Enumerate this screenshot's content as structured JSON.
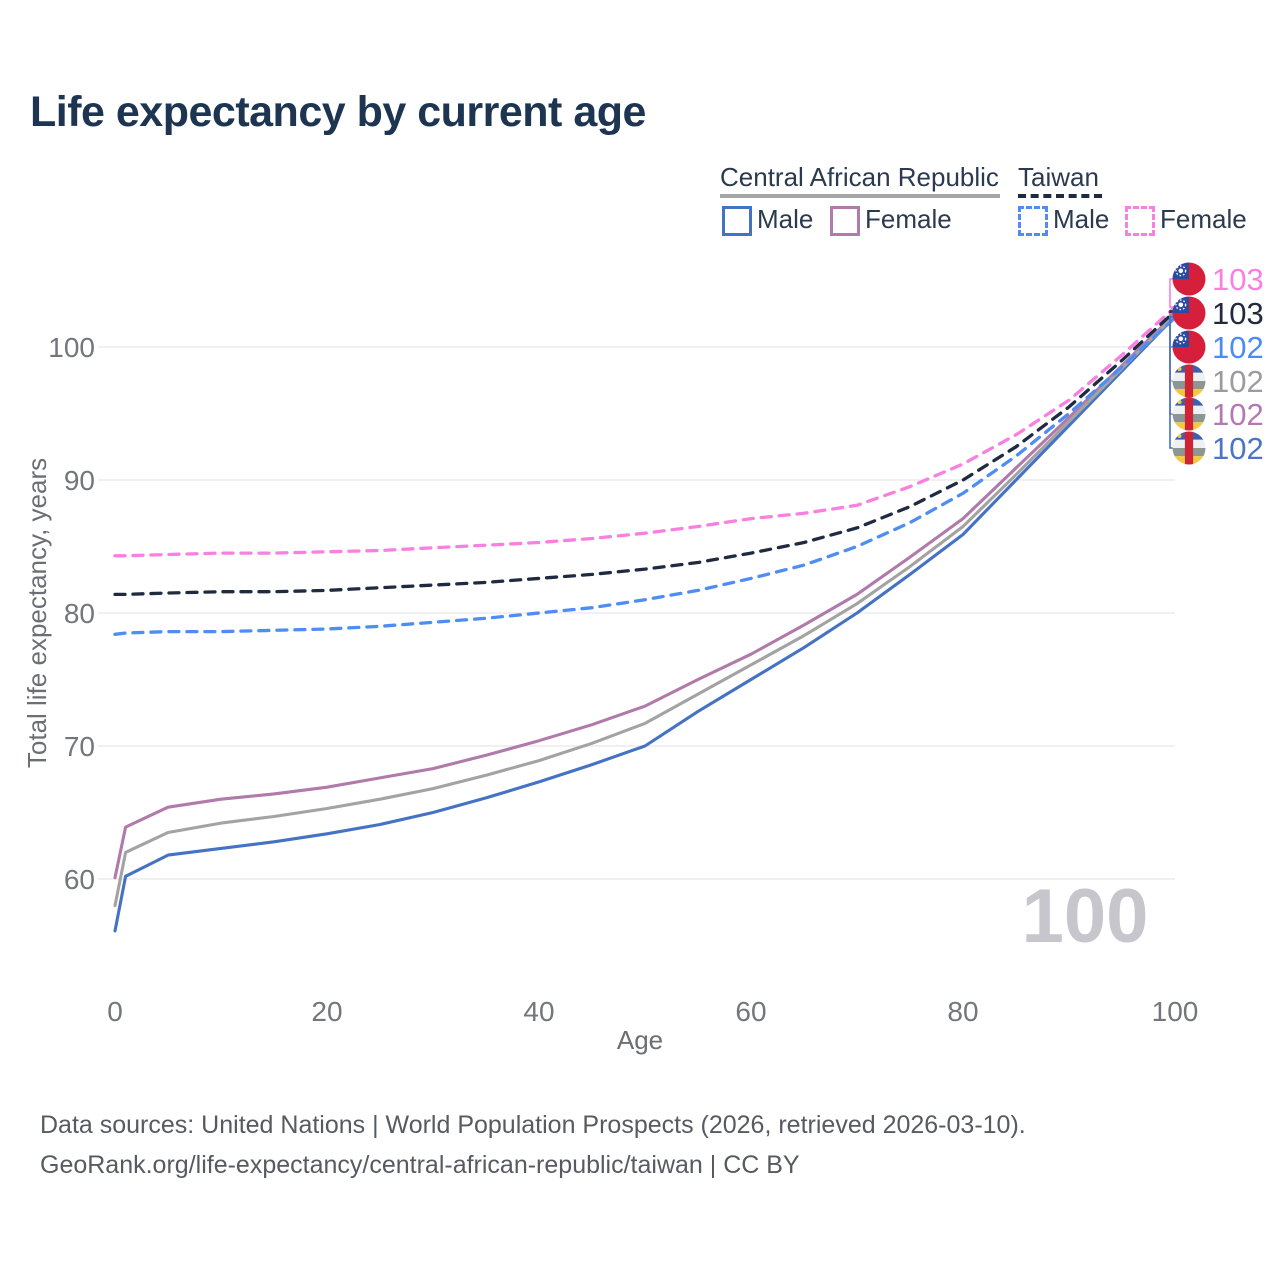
{
  "title": "Life expectancy by current age",
  "legend": {
    "groups": [
      {
        "label": "Central African Republic",
        "line_style": "solid",
        "line_color": "#a6a6a6",
        "items": [
          {
            "label": "Male",
            "color": "#4472c4",
            "dashed": false
          },
          {
            "label": "Female",
            "color": "#b07aab",
            "dashed": false
          }
        ]
      },
      {
        "label": "Taiwan",
        "line_style": "dashed",
        "line_color": "#1f2b40",
        "items": [
          {
            "label": "Male",
            "color": "#4f8df5",
            "dashed": true
          },
          {
            "label": "Female",
            "color": "#f97fe0",
            "dashed": true
          }
        ]
      }
    ]
  },
  "chart_data": {
    "type": "line",
    "title": "Life expectancy by current age",
    "xlabel": "Age",
    "ylabel": "Total life expectancy, years",
    "xlim": [
      0,
      100
    ],
    "ylim": [
      54,
      106
    ],
    "xticks": [
      0,
      20,
      40,
      60,
      80,
      100
    ],
    "yticks": [
      60,
      70,
      80,
      90,
      100
    ],
    "grid": "horizontal-only",
    "gridline_color": "#ececef",
    "watermark": "100",
    "series": [
      {
        "name": "Central African Republic Male",
        "country": "Central African Republic",
        "sex": "Male",
        "style": "solid",
        "color": "#4472c4",
        "points": [
          [
            0,
            56.1
          ],
          [
            1,
            60.2
          ],
          [
            5,
            61.8
          ],
          [
            10,
            62.3
          ],
          [
            15,
            62.8
          ],
          [
            20,
            63.4
          ],
          [
            25,
            64.1
          ],
          [
            30,
            65.0
          ],
          [
            35,
            66.1
          ],
          [
            40,
            67.3
          ],
          [
            45,
            68.6
          ],
          [
            50,
            70.0
          ],
          [
            55,
            72.6
          ],
          [
            60,
            75.0
          ],
          [
            65,
            77.4
          ],
          [
            70,
            80.0
          ],
          [
            75,
            82.9
          ],
          [
            80,
            85.9
          ],
          [
            85,
            90.0
          ],
          [
            90,
            94.1
          ],
          [
            95,
            98.2
          ],
          [
            100,
            102.3
          ]
        ]
      },
      {
        "name": "Central African Republic Female",
        "country": "Central African Republic",
        "sex": "Female",
        "style": "solid",
        "color": "#b07aab",
        "points": [
          [
            0,
            60.1
          ],
          [
            1,
            63.9
          ],
          [
            5,
            65.4
          ],
          [
            10,
            66.0
          ],
          [
            15,
            66.4
          ],
          [
            20,
            66.9
          ],
          [
            25,
            67.6
          ],
          [
            30,
            68.3
          ],
          [
            35,
            69.3
          ],
          [
            40,
            70.4
          ],
          [
            45,
            71.6
          ],
          [
            50,
            73.0
          ],
          [
            55,
            75.0
          ],
          [
            60,
            76.9
          ],
          [
            65,
            79.1
          ],
          [
            70,
            81.4
          ],
          [
            75,
            84.2
          ],
          [
            80,
            87.1
          ],
          [
            85,
            90.9
          ],
          [
            90,
            94.7
          ],
          [
            95,
            98.6
          ],
          [
            100,
            102.5
          ]
        ]
      },
      {
        "name": "Central African Republic Both sexes",
        "country": "Central African Republic",
        "sex": "Both",
        "style": "solid",
        "color": "#a3a3a3",
        "points": [
          [
            0,
            58.0
          ],
          [
            1,
            62.0
          ],
          [
            5,
            63.5
          ],
          [
            10,
            64.2
          ],
          [
            15,
            64.7
          ],
          [
            20,
            65.3
          ],
          [
            25,
            66.0
          ],
          [
            30,
            66.8
          ],
          [
            35,
            67.8
          ],
          [
            40,
            68.9
          ],
          [
            45,
            70.2
          ],
          [
            50,
            71.7
          ],
          [
            55,
            73.9
          ],
          [
            60,
            76.1
          ],
          [
            65,
            78.3
          ],
          [
            70,
            80.7
          ],
          [
            75,
            83.5
          ],
          [
            80,
            86.5
          ],
          [
            85,
            90.4
          ],
          [
            90,
            94.4
          ],
          [
            95,
            98.4
          ],
          [
            100,
            102.4
          ]
        ]
      },
      {
        "name": "Taiwan Male",
        "country": "Taiwan",
        "sex": "Male",
        "style": "dashed",
        "color": "#4f8df5",
        "points": [
          [
            0,
            78.4
          ],
          [
            1,
            78.5
          ],
          [
            5,
            78.6
          ],
          [
            10,
            78.6
          ],
          [
            15,
            78.7
          ],
          [
            20,
            78.8
          ],
          [
            25,
            79.0
          ],
          [
            30,
            79.3
          ],
          [
            35,
            79.6
          ],
          [
            40,
            80.0
          ],
          [
            45,
            80.4
          ],
          [
            50,
            81.0
          ],
          [
            55,
            81.7
          ],
          [
            60,
            82.6
          ],
          [
            65,
            83.6
          ],
          [
            70,
            85.0
          ],
          [
            75,
            86.8
          ],
          [
            80,
            89.0
          ],
          [
            85,
            91.8
          ],
          [
            90,
            95.0
          ],
          [
            95,
            98.5
          ],
          [
            100,
            102.2
          ]
        ]
      },
      {
        "name": "Taiwan Female",
        "country": "Taiwan",
        "sex": "Female",
        "style": "dashed",
        "color": "#f97fe0",
        "points": [
          [
            0,
            84.3
          ],
          [
            1,
            84.3
          ],
          [
            5,
            84.4
          ],
          [
            10,
            84.5
          ],
          [
            15,
            84.5
          ],
          [
            20,
            84.6
          ],
          [
            25,
            84.7
          ],
          [
            30,
            84.9
          ],
          [
            35,
            85.1
          ],
          [
            40,
            85.3
          ],
          [
            45,
            85.6
          ],
          [
            50,
            86.0
          ],
          [
            55,
            86.5
          ],
          [
            60,
            87.1
          ],
          [
            65,
            87.5
          ],
          [
            70,
            88.1
          ],
          [
            75,
            89.5
          ],
          [
            80,
            91.2
          ],
          [
            85,
            93.4
          ],
          [
            90,
            96.0
          ],
          [
            95,
            99.4
          ],
          [
            100,
            103.0
          ]
        ]
      },
      {
        "name": "Taiwan Both sexes",
        "country": "Taiwan",
        "sex": "Both",
        "style": "dashed",
        "color": "#1f2b40",
        "points": [
          [
            0,
            81.4
          ],
          [
            1,
            81.4
          ],
          [
            5,
            81.5
          ],
          [
            10,
            81.6
          ],
          [
            15,
            81.6
          ],
          [
            20,
            81.7
          ],
          [
            25,
            81.9
          ],
          [
            30,
            82.1
          ],
          [
            35,
            82.3
          ],
          [
            40,
            82.6
          ],
          [
            45,
            82.9
          ],
          [
            50,
            83.3
          ],
          [
            55,
            83.8
          ],
          [
            60,
            84.5
          ],
          [
            65,
            85.3
          ],
          [
            70,
            86.4
          ],
          [
            75,
            88.0
          ],
          [
            80,
            90.0
          ],
          [
            85,
            92.5
          ],
          [
            90,
            95.5
          ],
          [
            95,
            99.0
          ],
          [
            100,
            102.7
          ]
        ]
      }
    ],
    "end_labels": [
      {
        "text": "103",
        "color": "#f980e0",
        "flag": "taiwan",
        "series_index": 4
      },
      {
        "text": "103",
        "color": "#222b3d",
        "flag": "taiwan",
        "series_index": 5
      },
      {
        "text": "102",
        "color": "#4b8bf5",
        "flag": "taiwan",
        "series_index": 3
      },
      {
        "text": "102",
        "color": "#9b9ba1",
        "flag": "car",
        "series_index": 2
      },
      {
        "text": "102",
        "color": "#b279b2",
        "flag": "car",
        "series_index": 1
      },
      {
        "text": "102",
        "color": "#4a74c8",
        "flag": "car",
        "series_index": 0
      }
    ]
  },
  "footer": {
    "line1": "Data sources: United Nations | World Population Prospects (2026, retrieved 2026-03-10).",
    "line2": "GeoRank.org/life-expectancy/central-african-republic/taiwan | CC BY"
  }
}
